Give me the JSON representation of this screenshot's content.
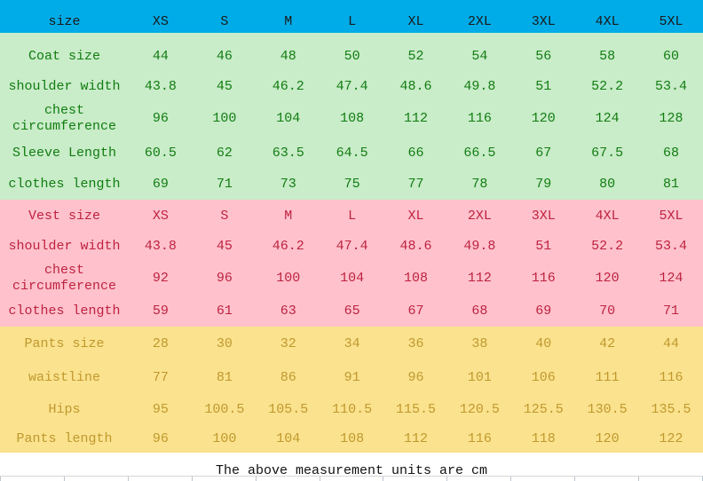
{
  "header": {
    "label": "size",
    "sizes": [
      "XS",
      "S",
      "M",
      "L",
      "XL",
      "2XL",
      "3XL",
      "4XL",
      "5XL"
    ],
    "bg": "#00ace8",
    "fg": "#1a1a1a"
  },
  "footer": {
    "note": "The above measurement units are cm"
  },
  "chart_data": {
    "type": "table",
    "title": "Garment size chart",
    "columns": [
      "size",
      "XS",
      "S",
      "M",
      "L",
      "XL",
      "2XL",
      "3XL",
      "4XL",
      "5XL"
    ],
    "units": "cm",
    "sections": [
      {
        "id": "coat",
        "bg": "#c9ecc9",
        "fg": "#117d11",
        "rows": [
          {
            "label": "Coat size",
            "values": [
              "44",
              "46",
              "48",
              "50",
              "52",
              "54",
              "56",
              "58",
              "60"
            ]
          },
          {
            "label": "shoulder width",
            "values": [
              "43.8",
              "45",
              "46.2",
              "47.4",
              "48.6",
              "49.8",
              "51",
              "52.2",
              "53.4"
            ]
          },
          {
            "label": "chest circumference",
            "values": [
              "96",
              "100",
              "104",
              "108",
              "112",
              "116",
              "120",
              "124",
              "128"
            ]
          },
          {
            "label": "Sleeve Length",
            "values": [
              "60.5",
              "62",
              "63.5",
              "64.5",
              "66",
              "66.5",
              "67",
              "67.5",
              "68"
            ]
          },
          {
            "label": "clothes length",
            "values": [
              "69",
              "71",
              "73",
              "75",
              "77",
              "78",
              "79",
              "80",
              "81"
            ]
          }
        ]
      },
      {
        "id": "vest",
        "bg": "#ffc2cc",
        "fg": "#be2240",
        "rows": [
          {
            "label": "Vest size",
            "values": [
              "XS",
              "S",
              "M",
              "L",
              "XL",
              "2XL",
              "3XL",
              "4XL",
              "5XL"
            ]
          },
          {
            "label": "shoulder width",
            "values": [
              "43.8",
              "45",
              "46.2",
              "47.4",
              "48.6",
              "49.8",
              "51",
              "52.2",
              "53.4"
            ]
          },
          {
            "label": "chest circumference",
            "values": [
              "92",
              "96",
              "100",
              "104",
              "108",
              "112",
              "116",
              "120",
              "124"
            ]
          },
          {
            "label": "clothes length",
            "values": [
              "59",
              "61",
              "63",
              "65",
              "67",
              "68",
              "69",
              "70",
              "71"
            ]
          }
        ]
      },
      {
        "id": "pants",
        "bg": "#fae28e",
        "fg": "#c0992e",
        "rows": [
          {
            "label": "Pants size",
            "values": [
              "28",
              "30",
              "32",
              "34",
              "36",
              "38",
              "40",
              "42",
              "44"
            ]
          },
          {
            "label": "waistline",
            "values": [
              "77",
              "81",
              "86",
              "91",
              "96",
              "101",
              "106",
              "111",
              "116"
            ]
          },
          {
            "label": "Hips",
            "values": [
              "95",
              "100.5",
              "105.5",
              "110.5",
              "115.5",
              "120.5",
              "125.5",
              "130.5",
              "135.5"
            ]
          },
          {
            "label": "Pants length",
            "values": [
              "96",
              "100",
              "104",
              "108",
              "112",
              "116",
              "118",
              "120",
              "122"
            ]
          }
        ]
      }
    ]
  }
}
